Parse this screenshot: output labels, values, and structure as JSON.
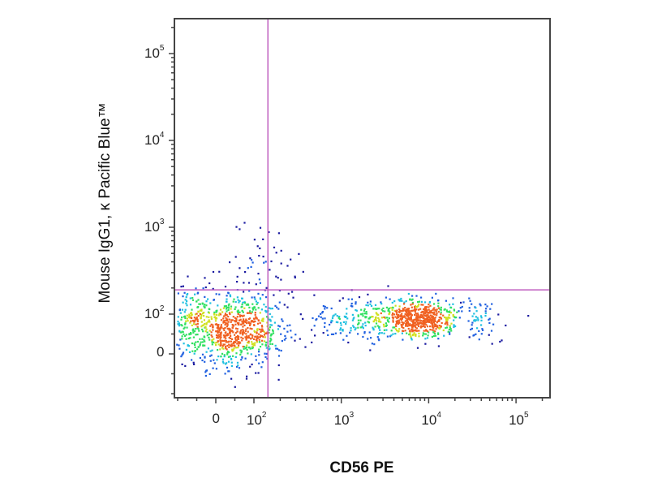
{
  "chart_data": {
    "type": "scatter",
    "subtype": "flow-cytometry density dot plot",
    "xlabel": "CD56 PE",
    "ylabel": "Mouse IgG1, κ Pacific Blue™",
    "x_scale": "biexponential",
    "y_scale": "biexponential",
    "x_ticks": [
      {
        "value": 0,
        "base": "0",
        "exp": ""
      },
      {
        "value": 100,
        "base": "10",
        "exp": "2"
      },
      {
        "value": 1000,
        "base": "10",
        "exp": "3"
      },
      {
        "value": 10000,
        "base": "10",
        "exp": "4"
      },
      {
        "value": 100000,
        "base": "10",
        "exp": "5"
      }
    ],
    "y_ticks": [
      {
        "value": 0,
        "base": "0",
        "exp": ""
      },
      {
        "value": 100,
        "base": "10",
        "exp": "2"
      },
      {
        "value": 1000,
        "base": "10",
        "exp": "3"
      },
      {
        "value": 10000,
        "base": "10",
        "exp": "4"
      },
      {
        "value": 100000,
        "base": "10",
        "exp": "5"
      }
    ],
    "xlim": [
      -110,
      250000
    ],
    "ylim": [
      -110,
      250000
    ],
    "quadrant_gate": {
      "x": 130,
      "y": 190,
      "color": "#c060c0"
    },
    "grid": false,
    "legend": "none",
    "color_scale": [
      "#1a1aa0",
      "#2060e0",
      "#20c0e0",
      "#30e060",
      "#d0e020",
      "#f06020"
    ],
    "populations": [
      {
        "x": 45,
        "y": 60,
        "count": 750,
        "spread_x": 0.28,
        "spread_y": 0.22
      },
      {
        "x": -70,
        "y": 85,
        "count": 160,
        "spread_x": 0.15,
        "spread_y": 0.22
      },
      {
        "x": 8000,
        "y": 90,
        "count": 520,
        "spread_x": 0.22,
        "spread_y": 0.1
      },
      {
        "x": 2000,
        "y": 90,
        "count": 260,
        "spread_x": 0.35,
        "spread_y": 0.12
      },
      {
        "x": 130,
        "y": 350,
        "count": 55,
        "spread_x": 0.18,
        "spread_y": 0.25
      },
      {
        "x": 40000,
        "y": 85,
        "count": 60,
        "spread_x": 0.15,
        "spread_y": 0.1
      }
    ]
  }
}
